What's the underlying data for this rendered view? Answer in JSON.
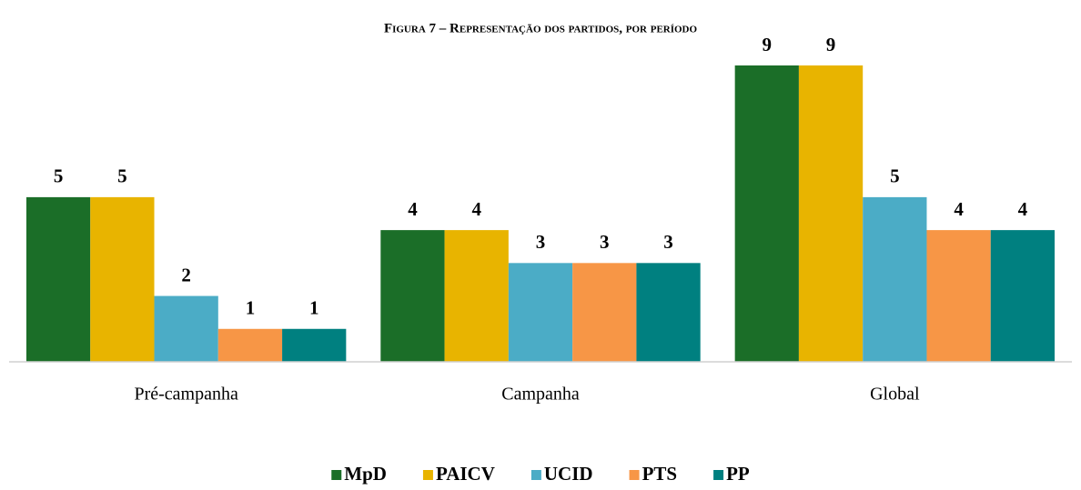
{
  "chart_data": {
    "type": "bar",
    "title": "Figura 7 – Representação dos partidos, por período",
    "categories": [
      "Pré-campanha",
      "Campanha",
      "Global"
    ],
    "series": [
      {
        "name": "MpD",
        "color": "#1b6e28",
        "values": [
          5,
          4,
          9
        ]
      },
      {
        "name": "PAICV",
        "color": "#e8b400",
        "values": [
          5,
          4,
          9
        ]
      },
      {
        "name": "UCID",
        "color": "#4bacc6",
        "values": [
          2,
          3,
          5
        ]
      },
      {
        "name": "PTS",
        "color": "#f79646",
        "values": [
          1,
          3,
          4
        ]
      },
      {
        "name": "PP",
        "color": "#008080",
        "values": [
          1,
          3,
          4
        ]
      }
    ],
    "ylim": [
      0,
      9
    ],
    "legend": "bottom"
  }
}
